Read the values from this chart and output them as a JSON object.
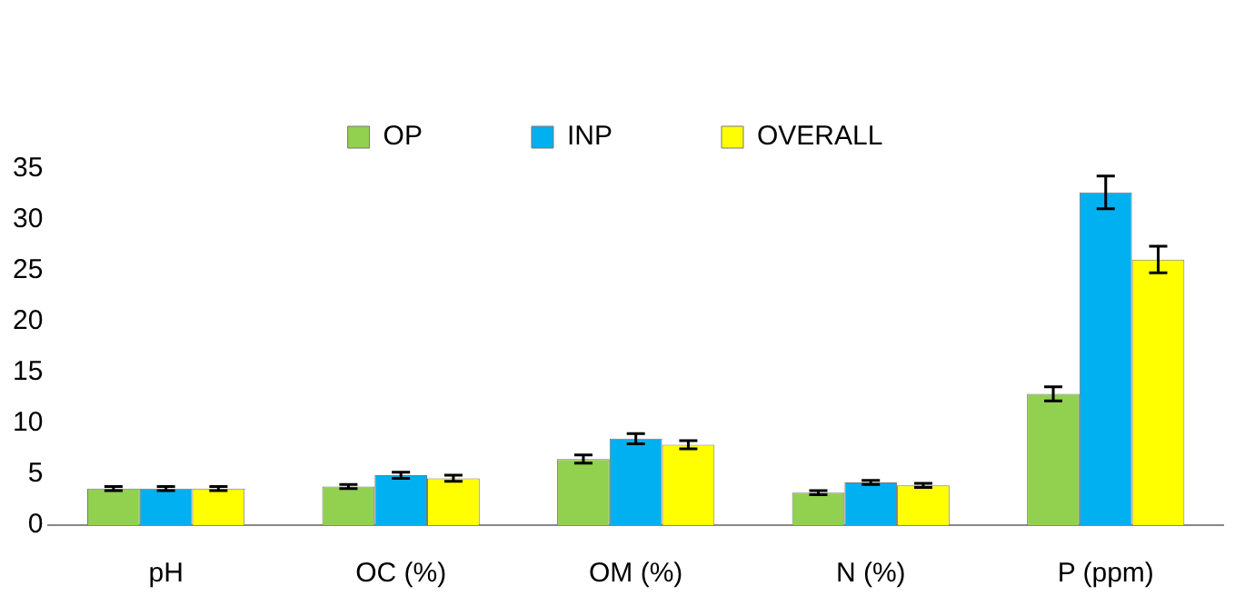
{
  "chart_data": {
    "type": "bar",
    "categories": [
      "pH",
      "OC (%)",
      "OM (%)",
      "N (%)",
      "P (ppm)"
    ],
    "series": [
      {
        "name": "OP",
        "color": "#92d050",
        "values": [
          3.6,
          3.8,
          6.5,
          3.2,
          12.9
        ],
        "errors": [
          0.2,
          0.2,
          0.4,
          0.2,
          0.7
        ]
      },
      {
        "name": "INP",
        "color": "#00b0f0",
        "values": [
          3.6,
          4.9,
          8.5,
          4.2,
          32.7
        ],
        "errors": [
          0.2,
          0.3,
          0.5,
          0.2,
          1.6
        ]
      },
      {
        "name": "OVERALL",
        "color": "#ffff00",
        "values": [
          3.6,
          4.6,
          7.9,
          3.9,
          26.1
        ],
        "errors": [
          0.2,
          0.3,
          0.4,
          0.2,
          1.3
        ]
      }
    ],
    "ylim": [
      0,
      35
    ],
    "yticks": [
      0,
      5,
      10,
      15,
      20,
      25,
      30,
      35
    ],
    "grid": false,
    "legend": "top"
  }
}
